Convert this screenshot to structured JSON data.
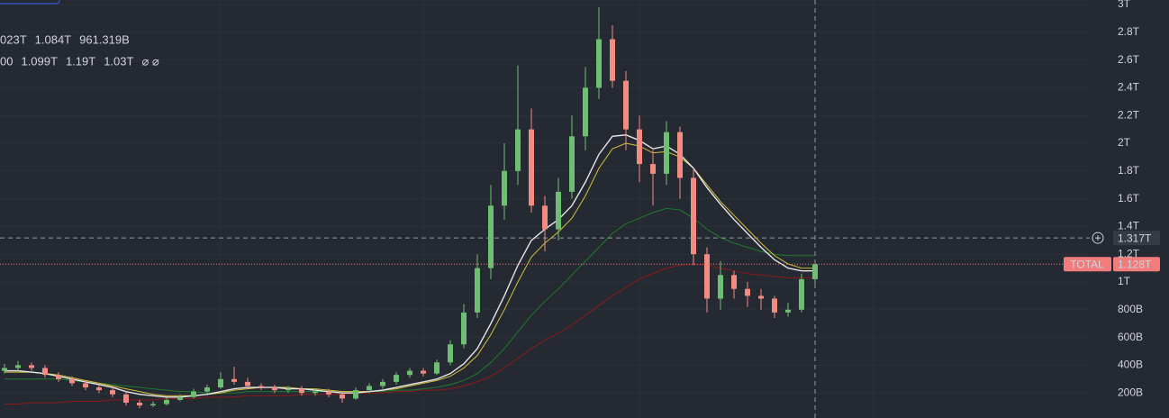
{
  "chart_data": {
    "type": "candlestick",
    "categories": [
      null,
      null,
      null,
      null,
      null,
      null,
      null,
      null,
      null,
      null,
      null,
      null,
      null,
      null,
      null,
      null,
      null,
      null,
      null,
      null,
      null,
      null,
      null,
      null,
      null,
      null,
      null,
      null,
      null,
      null,
      null,
      null,
      null,
      null,
      null,
      null,
      null,
      null,
      null,
      null,
      null,
      null,
      null,
      null,
      null,
      null,
      null,
      null,
      null,
      null,
      null,
      null,
      null,
      null,
      null,
      null,
      null,
      null,
      null,
      null,
      null
    ],
    "open": [
      0.36,
      0.38,
      0.4,
      0.38,
      0.33,
      0.3,
      0.27,
      0.24,
      0.22,
      0.19,
      0.13,
      0.11,
      0.12,
      0.15,
      0.17,
      0.21,
      0.24,
      0.3,
      0.28,
      0.25,
      0.24,
      0.22,
      0.23,
      0.2,
      0.21,
      0.19,
      0.16,
      0.22,
      0.25,
      0.28,
      0.33,
      0.36,
      0.34,
      0.42,
      0.55,
      0.78,
      1.1,
      1.55,
      1.8,
      2.1,
      1.55,
      1.38,
      1.65,
      2.05,
      2.4,
      2.75,
      2.45,
      2.1,
      1.85,
      1.78,
      2.08,
      1.75,
      1.2,
      0.88,
      1.05,
      0.95,
      0.9,
      0.88,
      0.78,
      0.8,
      1.02
    ],
    "high": [
      0.41,
      0.43,
      0.42,
      0.4,
      0.35,
      0.32,
      0.29,
      0.26,
      0.24,
      0.21,
      0.15,
      0.14,
      0.17,
      0.19,
      0.23,
      0.26,
      0.35,
      0.39,
      0.31,
      0.27,
      0.26,
      0.25,
      0.25,
      0.23,
      0.23,
      0.21,
      0.24,
      0.27,
      0.3,
      0.35,
      0.38,
      0.38,
      0.44,
      0.58,
      0.84,
      1.2,
      1.7,
      2.0,
      2.56,
      2.25,
      1.62,
      1.75,
      2.2,
      2.55,
      2.98,
      2.85,
      2.52,
      2.2,
      1.95,
      2.16,
      2.12,
      1.82,
      1.25,
      1.15,
      1.08,
      1.0,
      0.95,
      0.9,
      0.85,
      1.06,
      1.15
    ],
    "low": [
      0.34,
      0.36,
      0.36,
      0.31,
      0.28,
      0.25,
      0.22,
      0.2,
      0.17,
      0.11,
      0.09,
      0.1,
      0.11,
      0.14,
      0.16,
      0.2,
      0.23,
      0.26,
      0.23,
      0.22,
      0.2,
      0.2,
      0.18,
      0.18,
      0.17,
      0.13,
      0.15,
      0.2,
      0.23,
      0.26,
      0.31,
      0.32,
      0.33,
      0.4,
      0.52,
      0.74,
      1.02,
      1.45,
      1.7,
      1.5,
      1.22,
      1.3,
      1.6,
      1.95,
      2.32,
      2.4,
      1.95,
      1.72,
      1.55,
      1.7,
      1.6,
      1.12,
      0.78,
      0.8,
      0.88,
      0.82,
      0.8,
      0.74,
      0.75,
      0.78,
      0.96
    ],
    "close": [
      0.38,
      0.4,
      0.38,
      0.33,
      0.3,
      0.27,
      0.24,
      0.22,
      0.19,
      0.13,
      0.11,
      0.12,
      0.15,
      0.17,
      0.21,
      0.24,
      0.3,
      0.28,
      0.25,
      0.24,
      0.22,
      0.23,
      0.2,
      0.21,
      0.19,
      0.16,
      0.22,
      0.25,
      0.28,
      0.33,
      0.36,
      0.34,
      0.42,
      0.55,
      0.78,
      1.1,
      1.55,
      1.8,
      2.1,
      1.55,
      1.38,
      1.65,
      2.05,
      2.4,
      2.75,
      2.45,
      2.1,
      1.85,
      1.78,
      2.08,
      1.75,
      1.2,
      0.88,
      1.05,
      0.95,
      0.9,
      0.88,
      0.78,
      0.8,
      1.02,
      1.128
    ],
    "up_color": "#6fbf73",
    "down_color": "#f28b82",
    "series": [
      {
        "color": "#1f7a2e",
        "values": [
          0.3,
          0.3,
          0.3,
          0.3,
          0.3,
          0.29,
          0.28,
          0.27,
          0.26,
          0.25,
          0.24,
          0.23,
          0.22,
          0.21,
          0.21,
          0.2,
          0.2,
          0.2,
          0.21,
          0.21,
          0.21,
          0.21,
          0.21,
          0.21,
          0.21,
          0.21,
          0.21,
          0.21,
          0.21,
          0.22,
          0.22,
          0.23,
          0.24,
          0.26,
          0.29,
          0.34,
          0.42,
          0.52,
          0.64,
          0.76,
          0.86,
          0.95,
          1.05,
          1.15,
          1.25,
          1.35,
          1.42,
          1.46,
          1.5,
          1.53,
          1.52,
          1.46,
          1.38,
          1.32,
          1.28,
          1.25,
          1.22,
          1.2,
          1.19,
          1.19,
          1.19
        ]
      },
      {
        "color": "#8b1a1a",
        "values": [
          0.12,
          0.12,
          0.13,
          0.13,
          0.13,
          0.14,
          0.14,
          0.14,
          0.15,
          0.15,
          0.15,
          0.15,
          0.16,
          0.16,
          0.16,
          0.17,
          0.17,
          0.17,
          0.18,
          0.18,
          0.18,
          0.18,
          0.19,
          0.19,
          0.19,
          0.19,
          0.2,
          0.2,
          0.2,
          0.21,
          0.21,
          0.22,
          0.22,
          0.23,
          0.25,
          0.28,
          0.32,
          0.38,
          0.45,
          0.52,
          0.58,
          0.63,
          0.69,
          0.76,
          0.83,
          0.9,
          0.96,
          1.02,
          1.06,
          1.1,
          1.12,
          1.13,
          1.12,
          1.1,
          1.08,
          1.06,
          1.05,
          1.04,
          1.03,
          1.03,
          1.03
        ]
      },
      {
        "color": "#d4c13a",
        "values": [
          0.35,
          0.35,
          0.35,
          0.34,
          0.33,
          0.31,
          0.29,
          0.27,
          0.25,
          0.23,
          0.21,
          0.19,
          0.18,
          0.18,
          0.18,
          0.19,
          0.2,
          0.22,
          0.23,
          0.24,
          0.24,
          0.24,
          0.23,
          0.23,
          0.22,
          0.21,
          0.21,
          0.21,
          0.22,
          0.23,
          0.25,
          0.27,
          0.29,
          0.32,
          0.38,
          0.47,
          0.62,
          0.8,
          1.0,
          1.18,
          1.28,
          1.36,
          1.46,
          1.62,
          1.82,
          1.96,
          2.0,
          1.98,
          1.93,
          1.94,
          1.9,
          1.82,
          1.7,
          1.58,
          1.48,
          1.38,
          1.28,
          1.19,
          1.13,
          1.1,
          1.099
        ]
      },
      {
        "color": "#e6e6e6",
        "values": [
          0.36,
          0.36,
          0.35,
          0.34,
          0.32,
          0.3,
          0.28,
          0.26,
          0.24,
          0.21,
          0.19,
          0.18,
          0.17,
          0.17,
          0.18,
          0.19,
          0.21,
          0.23,
          0.24,
          0.24,
          0.24,
          0.23,
          0.23,
          0.22,
          0.21,
          0.2,
          0.2,
          0.21,
          0.22,
          0.24,
          0.26,
          0.28,
          0.3,
          0.34,
          0.41,
          0.52,
          0.7,
          0.9,
          1.12,
          1.3,
          1.38,
          1.45,
          1.55,
          1.72,
          1.92,
          2.05,
          2.06,
          2.02,
          1.96,
          1.98,
          1.92,
          1.82,
          1.68,
          1.56,
          1.45,
          1.35,
          1.25,
          1.16,
          1.1,
          1.08,
          1.08
        ]
      }
    ],
    "ylim": [
      0.0195,
      3.0325
    ],
    "yticks": [
      {
        "value": 3,
        "label": "3T"
      },
      {
        "value": 2.8,
        "label": "2.8T"
      },
      {
        "value": 2.6,
        "label": "2.6T"
      },
      {
        "value": 2.4,
        "label": "2.4T"
      },
      {
        "value": 2.2,
        "label": "2.2T"
      },
      {
        "value": 2,
        "label": "2T"
      },
      {
        "value": 1.8,
        "label": "1.8T"
      },
      {
        "value": 1.6,
        "label": "1.6T"
      },
      {
        "value": 1.4,
        "label": "1.4T"
      },
      {
        "value": 1.2,
        "label": "1.2T"
      },
      {
        "value": 1,
        "label": "1T"
      },
      {
        "value": 0.8,
        "label": "800B"
      },
      {
        "value": 0.6,
        "label": "600B"
      },
      {
        "value": 0.4,
        "label": "400B"
      },
      {
        "value": 0.2,
        "label": "200B"
      }
    ],
    "grid": true,
    "last_price": {
      "symbol": "TOTAL",
      "value": 1.128,
      "label": "1.128T",
      "color": "#f07c7c"
    },
    "crosshair": {
      "value": 1.317,
      "label": "1.317T"
    },
    "legend_rows": [
      [
        {
          "text": "023T",
          "color": "#d1d4dc"
        },
        {
          "text": "1.084T",
          "color": "#d1d4dc"
        },
        {
          "text": "961.319B",
          "color": "#d1d4dc"
        }
      ],
      [
        {
          "text": "00",
          "color": "#d1d4dc"
        },
        {
          "text": "1.099T",
          "color": "#e6d84a"
        },
        {
          "text": "1.19T",
          "color": "#2e9e3e"
        },
        {
          "text": "1.03T",
          "color": "#d32f2f"
        },
        {
          "text": "⌀ ⌀",
          "color": "#9598a1"
        }
      ]
    ]
  }
}
